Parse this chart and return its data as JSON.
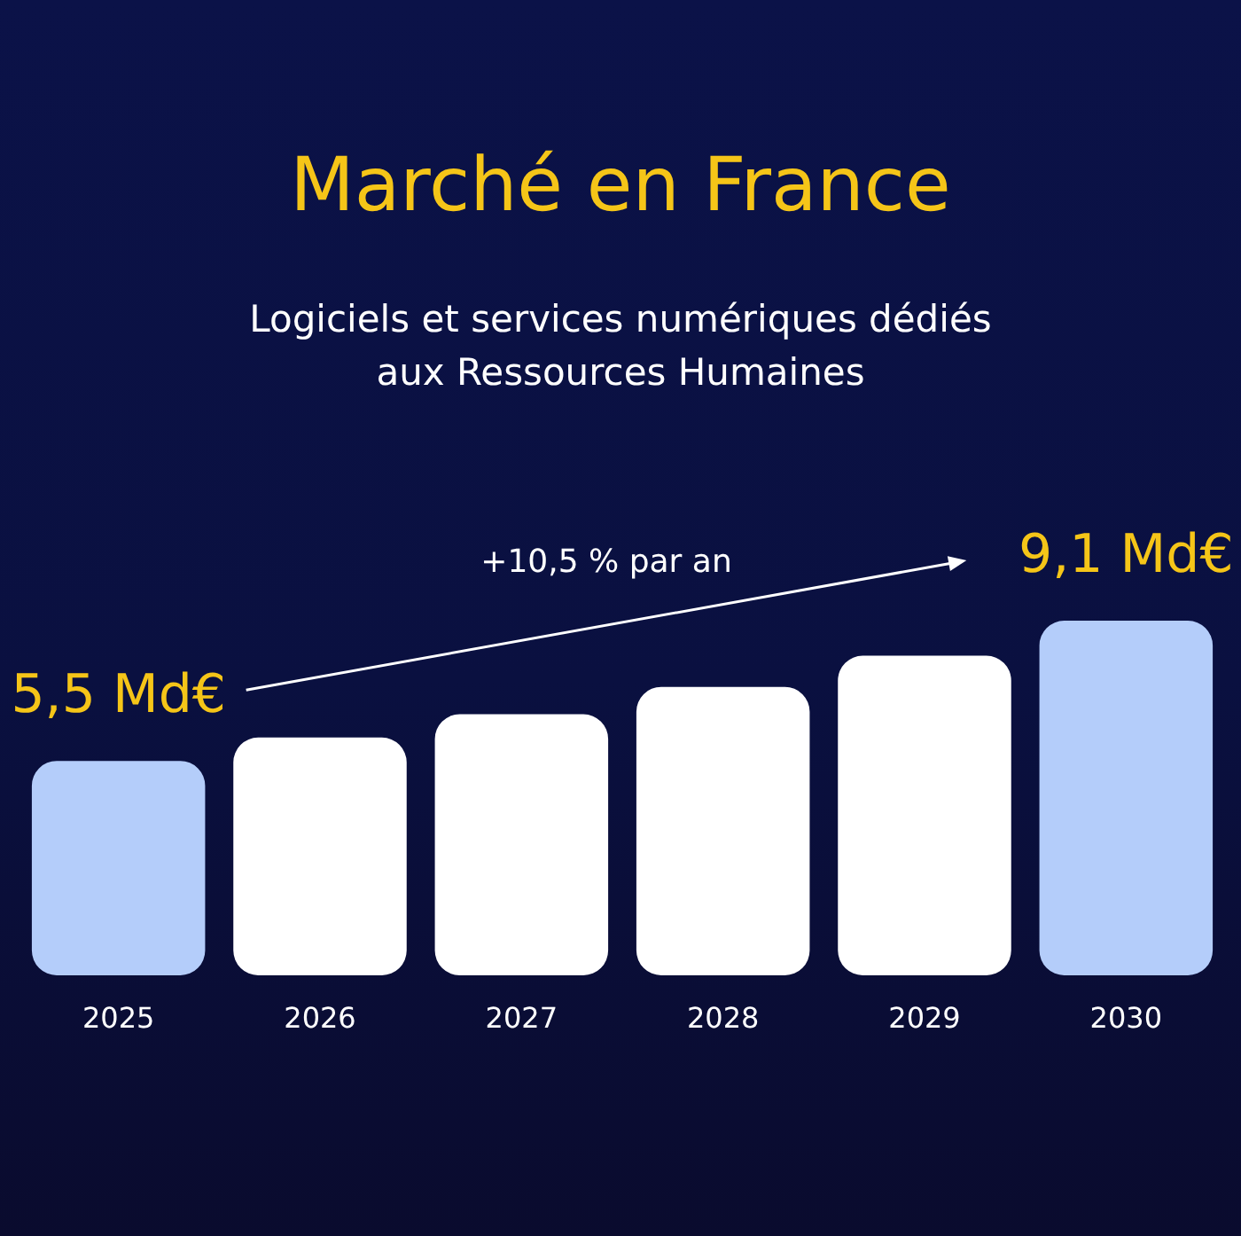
{
  "chart_data": {
    "type": "bar",
    "title": "Marché en France",
    "subtitle": "Logiciels et services numériques dédiés\naux Ressources Humaines",
    "categories": [
      "2025",
      "2026",
      "2027",
      "2028",
      "2029",
      "2030"
    ],
    "values": [
      5.5,
      6.1,
      6.7,
      7.4,
      8.2,
      9.1
    ],
    "colors": [
      "#b4cdfa",
      "#ffffff",
      "#ffffff",
      "#ffffff",
      "#ffffff",
      "#b4cdfa"
    ],
    "value_labels": [
      "5,5 Md€",
      null,
      null,
      null,
      null,
      "9,1 Md€"
    ],
    "annotations": [
      "+10,5 % par an"
    ]
  }
}
